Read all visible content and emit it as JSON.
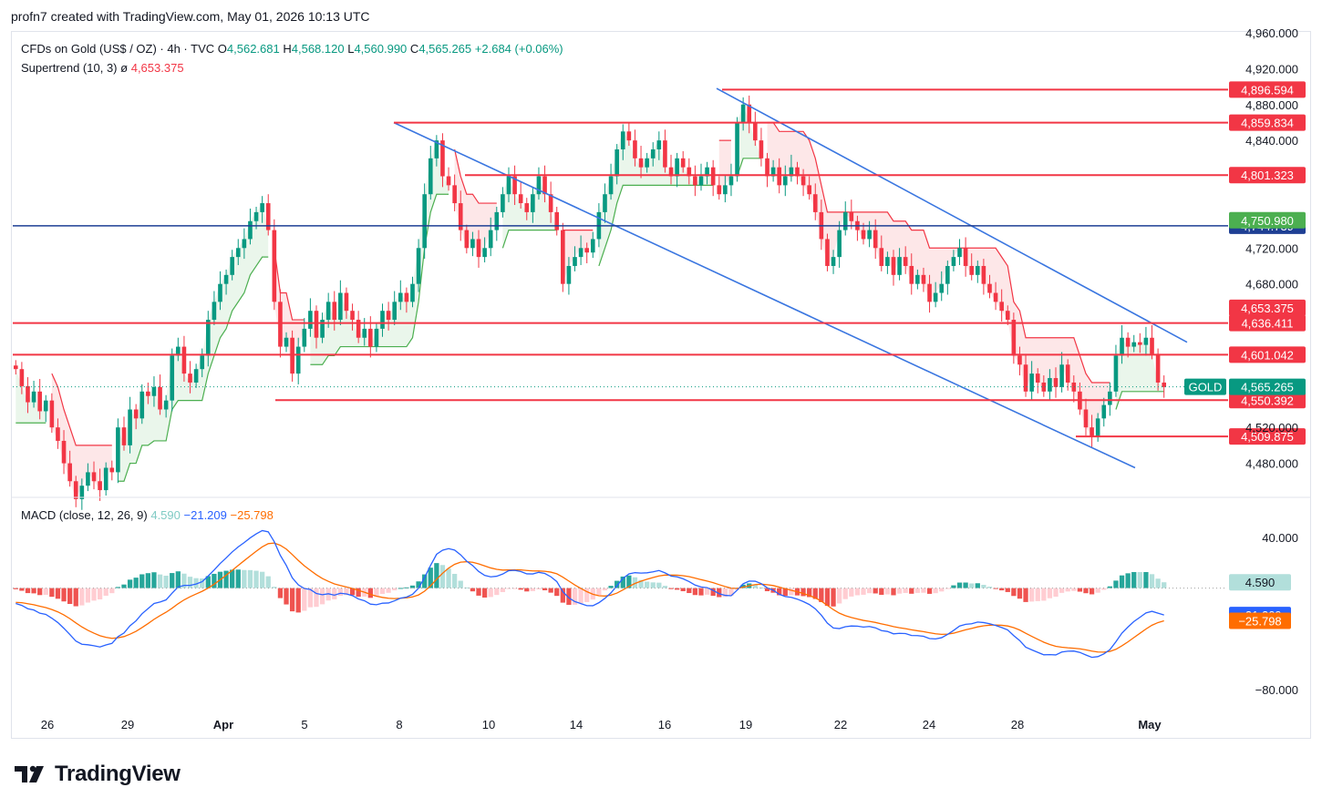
{
  "attribution": "profn7 created with TradingView.com, May 01, 2026 10:13 UTC",
  "legend": {
    "symbol": "CFDs on Gold (US$ / OZ) · 4h · TVC",
    "open_label": "O",
    "open": "4,562.681",
    "high_label": "H",
    "high": "4,568.120",
    "low_label": "L",
    "low": "4,560.990",
    "close_label": "C",
    "close": "4,565.265",
    "change": "+2.684 (+0.06%)",
    "supertrend_label": "Supertrend (10, 3)",
    "supertrend_symbol": "ø",
    "supertrend_value": "4,653.375",
    "macd_label": "MACD (close, 12, 26, 9)",
    "macd_hist": "4.590",
    "macd_line": "−21.209",
    "macd_signal": "−25.798"
  },
  "footer": {
    "brand": "TradingView"
  },
  "colors": {
    "up": "#089981",
    "down": "#f23645",
    "level_line": "#f23645",
    "mid_line": "#1e3f94",
    "channel": "#3a76e0",
    "macd_line": "#2962ff",
    "signal_line": "#ff6d00",
    "hist_pos": "#26a69a",
    "hist_pos_light": "#b2dfdb",
    "hist_neg": "#ef5350",
    "hist_neg_light": "#ffcdd2",
    "st_up_fill": "#e8f5e9",
    "st_down_fill": "#fde4e6",
    "st_up": "#4caf50",
    "st_down": "#f23645"
  },
  "chart_data": [
    {
      "type": "candlestick",
      "title": "CFDs on Gold (US$ / OZ) · 4h · TVC",
      "x_ticks": [
        "26",
        "29",
        "Apr",
        "5",
        "8",
        "10",
        "14",
        "16",
        "19",
        "22",
        "24",
        "28",
        "May"
      ],
      "y_ticks": [
        "4,960.000",
        "4,920.000",
        "4,880.000",
        "4,840.000",
        "4,720.000",
        "4,680.000",
        "4,520.000",
        "4,480.000"
      ],
      "y_tick_values": [
        4960,
        4920,
        4880,
        4840,
        4720,
        4680,
        4520,
        4480
      ],
      "ylim": [
        4443,
        4960
      ],
      "horizontal_levels": [
        {
          "label": "4,896.594",
          "value": 4896.594,
          "color": "#f23645"
        },
        {
          "label": "4,859.834",
          "value": 4859.834,
          "color": "#f23645"
        },
        {
          "label": "4,801.323",
          "value": 4801.323,
          "color": "#f23645"
        },
        {
          "label": "4,744.739",
          "value": 4744.739,
          "color": "#1e3f94"
        },
        {
          "label": "4,636.411",
          "value": 4636.411,
          "color": "#f23645"
        },
        {
          "label": "4,601.042",
          "value": 4601.042,
          "color": "#f23645"
        },
        {
          "label": "4,550.392",
          "value": 4550.392,
          "color": "#f23645"
        },
        {
          "label": "4,509.875",
          "value": 4509.875,
          "color": "#f23645"
        }
      ],
      "price_tags": [
        {
          "label": "4,750.980",
          "value": 4750.98,
          "color": "#4caf50"
        },
        {
          "label": "4,653.375",
          "value": 4653.375,
          "color": "#f23645"
        },
        {
          "label": "4,565.265",
          "value": 4565.265,
          "color": "#089981",
          "symbol": "GOLD"
        }
      ],
      "series": [
        {
          "name": "Supertrend (10, 3)",
          "last": 4653.375
        }
      ],
      "candles_close": [
        4585,
        4566,
        4548,
        4560,
        4538,
        4550,
        4520,
        4505,
        4480,
        4460,
        4440,
        4455,
        4470,
        4460,
        4450,
        4475,
        4470,
        4520,
        4500,
        4540,
        4530,
        4560,
        4555,
        4565,
        4540,
        4550,
        4600,
        4610,
        4580,
        4570,
        4585,
        4600,
        4640,
        4660,
        4680,
        4690,
        4710,
        4720,
        4730,
        4750,
        4760,
        4770,
        4740,
        4660,
        4610,
        4620,
        4580,
        4610,
        4630,
        4650,
        4620,
        4640,
        4660,
        4640,
        4670,
        4650,
        4640,
        4620,
        4630,
        4610,
        4630,
        4650,
        4640,
        4660,
        4670,
        4660,
        4680,
        4720,
        4780,
        4820,
        4840,
        4800,
        4790,
        4770,
        4740,
        4720,
        4730,
        4710,
        4720,
        4740,
        4760,
        4780,
        4800,
        4780,
        4770,
        4760,
        4780,
        4800,
        4780,
        4760,
        4740,
        4680,
        4700,
        4710,
        4720,
        4715,
        4730,
        4760,
        4780,
        4800,
        4830,
        4850,
        4840,
        4820,
        4810,
        4820,
        4830,
        4840,
        4810,
        4800,
        4820,
        4810,
        4800,
        4790,
        4800,
        4810,
        4790,
        4780,
        4790,
        4800,
        4860,
        4880,
        4860,
        4840,
        4820,
        4800,
        4810,
        4790,
        4800,
        4810,
        4800,
        4790,
        4780,
        4760,
        4730,
        4700,
        4710,
        4740,
        4760,
        4750,
        4740,
        4730,
        4740,
        4720,
        4700,
        4710,
        4690,
        4710,
        4700,
        4680,
        4690,
        4680,
        4660,
        4670,
        4680,
        4700,
        4710,
        4720,
        4700,
        4690,
        4700,
        4680,
        4670,
        4660,
        4650,
        4640,
        4600,
        4590,
        4560,
        4580,
        4570,
        4560,
        4575,
        4565,
        4590,
        4570,
        4560,
        4540,
        4520,
        4510,
        4530,
        4545,
        4560,
        4600,
        4620,
        4610,
        4615,
        4612,
        4620,
        4602,
        4570,
        4565
      ]
    },
    {
      "type": "line",
      "title": "MACD (close, 12, 26, 9)",
      "y_ticks": [
        "40.000",
        "−80.000"
      ],
      "y_tick_values": [
        40,
        -80
      ],
      "ylim": [
        -100,
        70
      ],
      "price_tags": [
        {
          "label": "4.590",
          "value": 4.59
        },
        {
          "label": "−21.209",
          "value": -21.209
        },
        {
          "label": "−25.798",
          "value": -25.798
        }
      ],
      "series": [
        {
          "name": "MACD",
          "last": -21.209
        },
        {
          "name": "Signal",
          "last": -25.798
        },
        {
          "name": "Histogram",
          "last": 4.59
        }
      ]
    }
  ]
}
